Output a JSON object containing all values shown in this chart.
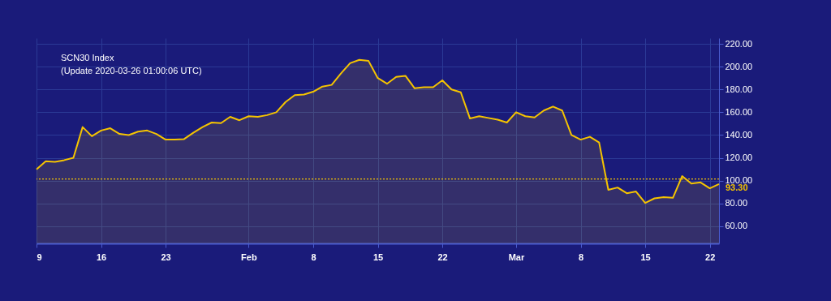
{
  "chart_data": {
    "type": "area",
    "title": "SCN30 Index",
    "subtitle": "(Update 2020-03-26 01:00:06 UTC)",
    "x": [
      "2020-01-09",
      "2020-01-10",
      "2020-01-11",
      "2020-01-12",
      "2020-01-13",
      "2020-01-14",
      "2020-01-15",
      "2020-01-16",
      "2020-01-17",
      "2020-01-18",
      "2020-01-19",
      "2020-01-20",
      "2020-01-21",
      "2020-01-22",
      "2020-01-23",
      "2020-01-24",
      "2020-01-25",
      "2020-01-26",
      "2020-01-27",
      "2020-01-28",
      "2020-01-29",
      "2020-01-30",
      "2020-01-31",
      "2020-02-01",
      "2020-02-02",
      "2020-02-03",
      "2020-02-04",
      "2020-02-05",
      "2020-02-06",
      "2020-02-07",
      "2020-02-08",
      "2020-02-09",
      "2020-02-10",
      "2020-02-11",
      "2020-02-12",
      "2020-02-13",
      "2020-02-14",
      "2020-02-15",
      "2020-02-16",
      "2020-02-17",
      "2020-02-18",
      "2020-02-19",
      "2020-02-20",
      "2020-02-21",
      "2020-02-22",
      "2020-02-23",
      "2020-02-24",
      "2020-02-25",
      "2020-02-26",
      "2020-02-27",
      "2020-02-28",
      "2020-02-29",
      "2020-03-01",
      "2020-03-02",
      "2020-03-03",
      "2020-03-04",
      "2020-03-05",
      "2020-03-06",
      "2020-03-07",
      "2020-03-08",
      "2020-03-09",
      "2020-03-10",
      "2020-03-11",
      "2020-03-12",
      "2020-03-13",
      "2020-03-14",
      "2020-03-15",
      "2020-03-16",
      "2020-03-17",
      "2020-03-18",
      "2020-03-19",
      "2020-03-20",
      "2020-03-21",
      "2020-03-22",
      "2020-03-23"
    ],
    "series": [
      {
        "color": "#f5c400",
        "values": [
          110,
          117,
          116.5,
          118,
          120,
          147,
          139,
          144,
          146,
          141,
          140,
          143,
          144,
          141,
          136,
          136,
          136.5,
          142,
          147,
          151,
          150.5,
          156,
          153,
          156.5,
          156,
          157.5,
          160,
          169,
          175,
          175.5,
          178,
          182.5,
          184,
          194,
          203,
          206,
          205,
          190,
          185,
          191,
          192,
          181,
          182,
          182,
          188,
          180,
          177.5,
          154.5,
          156.5,
          155,
          153.5,
          151,
          160,
          156.5,
          155.5,
          161.5,
          165,
          161.5,
          140,
          136,
          138.5,
          133.5,
          92,
          94,
          89,
          90.5,
          80.5,
          84.5,
          85.5,
          85,
          104,
          97.5,
          98.5,
          93.3,
          97
        ]
      }
    ],
    "xlim": [
      "2020-01-09",
      "2020-03-23"
    ],
    "xticks": [
      {
        "value": "2020-01-09",
        "label": "9"
      },
      {
        "value": "2020-01-16",
        "label": "16"
      },
      {
        "value": "2020-01-23",
        "label": "23"
      },
      {
        "value": "2020-02-01",
        "label": "Feb"
      },
      {
        "value": "2020-02-08",
        "label": "8"
      },
      {
        "value": "2020-02-15",
        "label": "15"
      },
      {
        "value": "2020-02-22",
        "label": "22"
      },
      {
        "value": "2020-03-01",
        "label": "Mar"
      },
      {
        "value": "2020-03-08",
        "label": "8"
      },
      {
        "value": "2020-03-15",
        "label": "15"
      },
      {
        "value": "2020-03-22",
        "label": "22"
      }
    ],
    "ylim": [
      45,
      225
    ],
    "yticks": [
      {
        "value": 60,
        "label": "60.00"
      },
      {
        "value": 80,
        "label": "80.00"
      },
      {
        "value": 100,
        "label": "100.00"
      },
      {
        "value": 120,
        "label": "120.00"
      },
      {
        "value": 140,
        "label": "140.00"
      },
      {
        "value": 160,
        "label": "160.00"
      },
      {
        "value": 180,
        "label": "180.00"
      },
      {
        "value": 200,
        "label": "200.00"
      },
      {
        "value": 220,
        "label": "220.00"
      }
    ],
    "ref_lines": [
      {
        "axis": "y",
        "value": 101.5,
        "color": "#f5c400",
        "line_style": "dotted"
      }
    ],
    "annotations": [
      {
        "text": "93.30",
        "x": "2020-03-23",
        "y": 93.3
      }
    ],
    "grid": true
  }
}
